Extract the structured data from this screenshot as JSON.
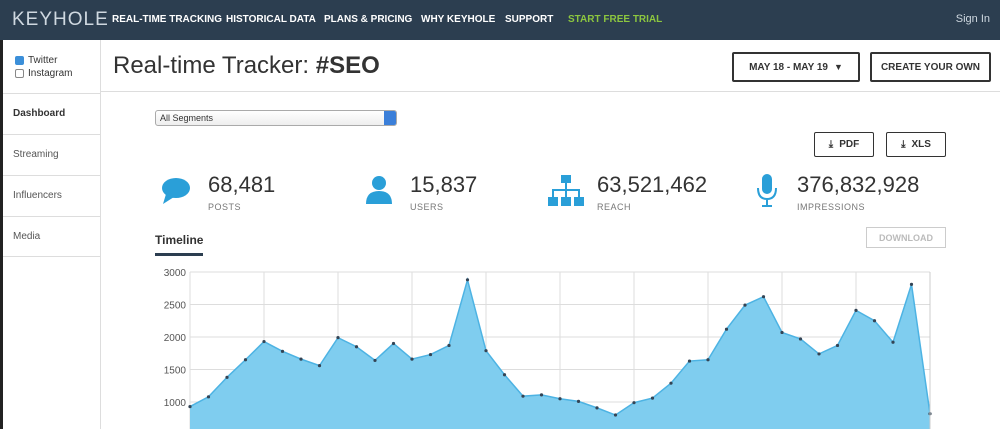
{
  "nav": {
    "logo": "KEYHOLE",
    "items": [
      "REAL-TIME TRACKING",
      "HISTORICAL DATA",
      "PLANS & PRICING",
      "WHY KEYHOLE",
      "SUPPORT",
      "START FREE TRIAL"
    ],
    "signin": "Sign In"
  },
  "sidebar": {
    "checks": [
      "Twitter",
      "Instagram"
    ],
    "menu": [
      "Dashboard",
      "Streaming",
      "Influencers",
      "Media"
    ]
  },
  "header": {
    "title": "Real-time Tracker:",
    "hashtag": "#SEO",
    "date_button": "MAY 18 - MAY 19",
    "create_button": "CREATE YOUR OWN"
  },
  "segment_select": "All Segments",
  "export": [
    "PDF",
    "XLS"
  ],
  "stats": [
    {
      "value": "68,481",
      "label": "POSTS"
    },
    {
      "value": "15,837",
      "label": "USERS"
    },
    {
      "value": "63,521,462",
      "label": "REACH"
    },
    {
      "value": "376,832,928",
      "label": "IMPRESSIONS"
    }
  ],
  "timeline_tab": "Timeline",
  "download": "DOWNLOAD",
  "chart_data": {
    "type": "area",
    "color": "#7fcdef",
    "line_color": "#4db3e3",
    "values": [
      930,
      1080,
      1380,
      1650,
      1930,
      1780,
      1660,
      1560,
      1990,
      1850,
      1640,
      1900,
      1660,
      1730,
      1870,
      2880,
      1790,
      1420,
      1090,
      1110,
      1050,
      1010,
      910,
      800,
      990,
      1060,
      1290,
      1630,
      1650,
      2120,
      2490,
      2620,
      2070,
      1970,
      1740,
      1870,
      2410,
      2250,
      1920,
      2810,
      820
    ],
    "ylim": [
      585,
      3000
    ],
    "yticks": [
      1000,
      1500,
      2000,
      2500,
      3000
    ],
    "grid": true
  }
}
